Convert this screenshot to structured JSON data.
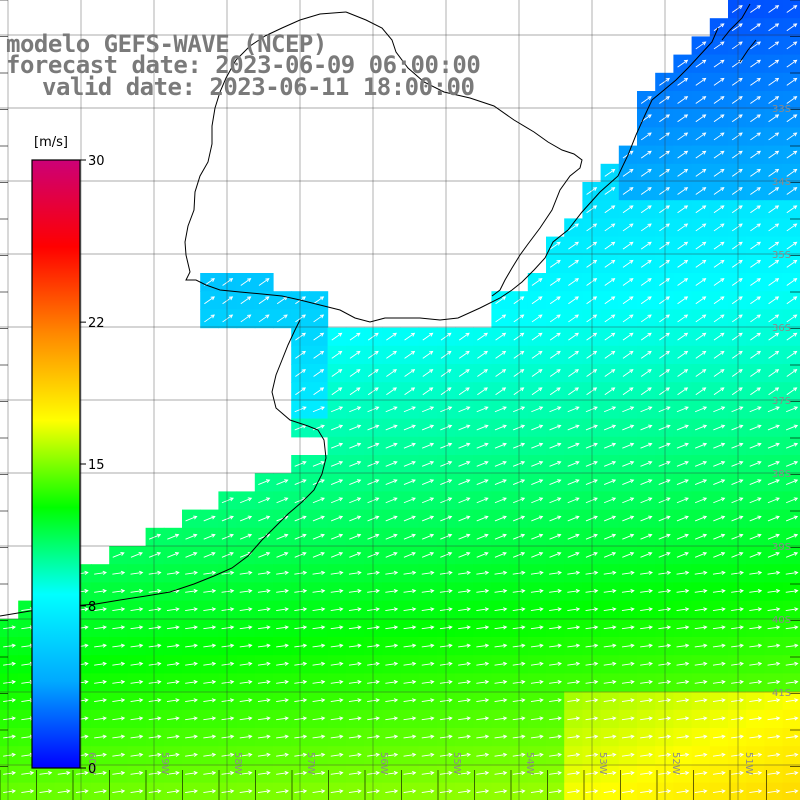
{
  "title": {
    "line1": "modelo GEFS-WAVE (NCEP)",
    "line2": "forecast date: 2023-06-09 06:00:00",
    "line3": "valid date: 2023-06-11 18:00:00"
  },
  "colorbar": {
    "unit": "[m/s]",
    "ticks": [
      {
        "label": "30",
        "value": 30
      },
      {
        "label": "22",
        "value": 22
      },
      {
        "label": "15",
        "value": 15
      },
      {
        "label": "8",
        "value": 8
      },
      {
        "label": "0",
        "value": 0
      }
    ],
    "min": 0,
    "max": 30,
    "colors": [
      "#0000ff",
      "#00aaff",
      "#00ffff",
      "#00ff00",
      "#ffff00",
      "#ff8800",
      "#ff0000",
      "#cc0077"
    ]
  },
  "latitude_labels": [
    "33S",
    "34S",
    "35S",
    "36S",
    "37S",
    "38S",
    "39S",
    "40S",
    "41S"
  ],
  "longitude_labels": [
    "60W",
    "59W",
    "58W",
    "57W",
    "56W",
    "55W",
    "54W",
    "53W",
    "52W",
    "51W"
  ],
  "field": {
    "variable": "wind speed with direction arrows",
    "units": "m/s"
  }
}
